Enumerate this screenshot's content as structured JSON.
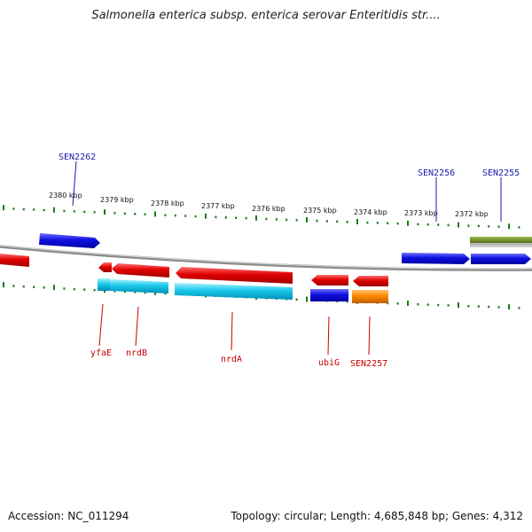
{
  "title": "Salmonella enterica subsp. enterica serovar Enteritidis str....",
  "footer": {
    "accession": "Accession: NC_011294",
    "summary": "Topology: circular; Length: 4,685,848 bp; Genes: 4,312"
  },
  "colors": {
    "forward_gene": "#1010e0",
    "reverse_gene": "#e00000",
    "cds_cyan": "#18c8e8",
    "orange": "#ff8a00",
    "rna_green": "#6b8e23",
    "tick_green": "#1a7a1a",
    "backbone": "#8c8c8c",
    "label_blue": "#1a1aaa",
    "label_red": "#c80000"
  },
  "scale": {
    "labels": [
      "2380 kbp",
      "2379 kbp",
      "2378 kbp",
      "2377 kbp",
      "2376 kbp",
      "2375 kbp",
      "2374 kbp",
      "2373 kbp",
      "2372 kbp"
    ]
  },
  "gene_labels": {
    "top": [
      "SEN2262",
      "SEN2256",
      "SEN2255"
    ],
    "bottom": [
      "yfaE",
      "nrdB",
      "nrdA",
      "ubiG",
      "SEN2257"
    ]
  }
}
